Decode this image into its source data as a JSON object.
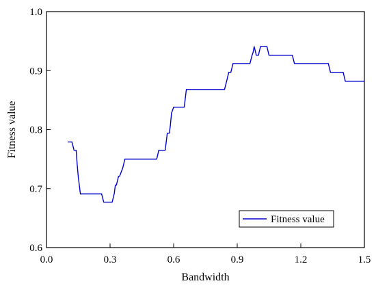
{
  "chart_data": {
    "type": "line",
    "xlabel": "Bandwidth",
    "ylabel": "Fitness value",
    "xlim": [
      0.0,
      1.5
    ],
    "ylim": [
      0.6,
      1.0
    ],
    "xticks": [
      "0.0",
      "0.3",
      "0.6",
      "0.9",
      "1.2",
      "1.5"
    ],
    "yticks": [
      "0.6",
      "0.7",
      "0.8",
      "0.9",
      "1.0"
    ],
    "grid": false,
    "legend_position": "bottom-right",
    "colors": {
      "series": "#0000cc",
      "axis": "#000000"
    },
    "series": [
      {
        "name": "Fitness value",
        "x": [
          0.1,
          0.12,
          0.13,
          0.14,
          0.145,
          0.15,
          0.16,
          0.26,
          0.27,
          0.31,
          0.32,
          0.325,
          0.33,
          0.34,
          0.345,
          0.36,
          0.37,
          0.52,
          0.53,
          0.56,
          0.565,
          0.57,
          0.58,
          0.585,
          0.59,
          0.6,
          0.65,
          0.66,
          0.84,
          0.85,
          0.86,
          0.87,
          0.88,
          0.89,
          0.96,
          0.97,
          0.975,
          0.98,
          0.99,
          1.0,
          1.01,
          1.02,
          1.04,
          1.05,
          1.16,
          1.17,
          1.33,
          1.34,
          1.4,
          1.41,
          1.5
        ],
        "y": [
          0.779,
          0.779,
          0.765,
          0.765,
          0.74,
          0.72,
          0.691,
          0.691,
          0.677,
          0.677,
          0.692,
          0.706,
          0.706,
          0.721,
          0.721,
          0.735,
          0.75,
          0.75,
          0.765,
          0.765,
          0.779,
          0.794,
          0.794,
          0.809,
          0.828,
          0.838,
          0.838,
          0.868,
          0.868,
          0.882,
          0.897,
          0.897,
          0.912,
          0.912,
          0.912,
          0.926,
          0.931,
          0.941,
          0.926,
          0.926,
          0.941,
          0.941,
          0.941,
          0.926,
          0.926,
          0.912,
          0.912,
          0.897,
          0.897,
          0.882,
          0.882
        ]
      }
    ]
  }
}
